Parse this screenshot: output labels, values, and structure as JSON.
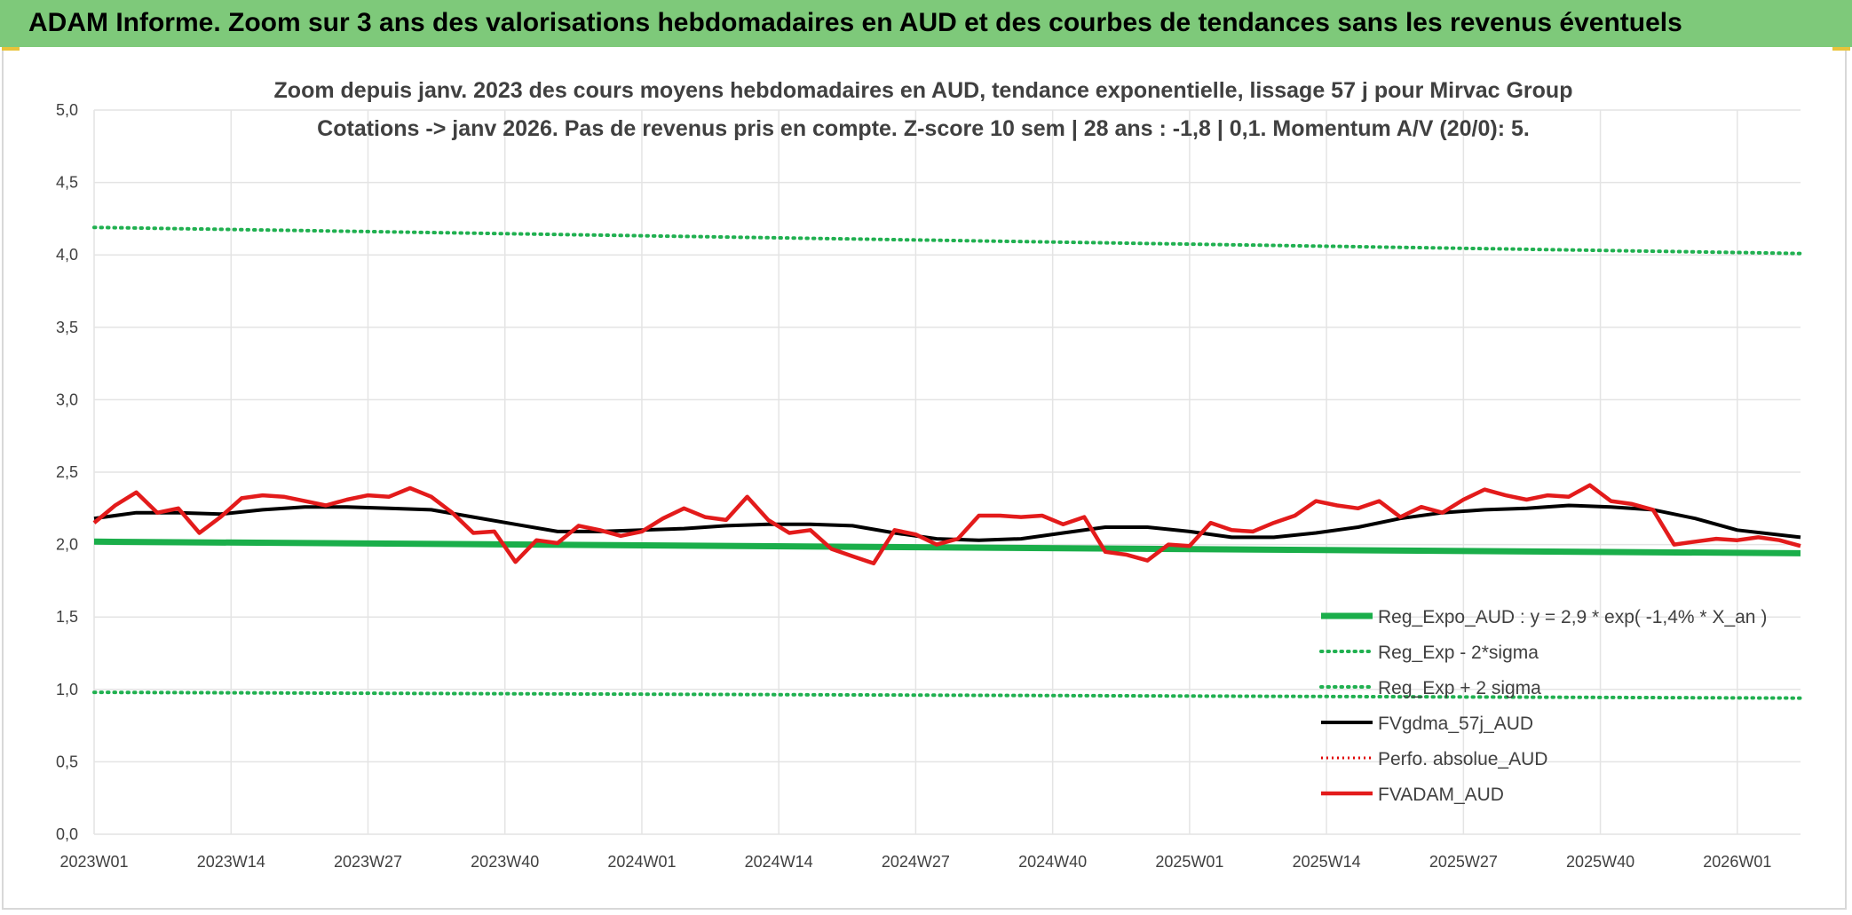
{
  "header": {
    "title": "ADAM Informe. Zoom sur 3 ans des valorisations hebdomadaires en AUD et des courbes de tendances sans les revenus éventuels"
  },
  "colors": {
    "banner": "#7ec97a",
    "reg_expo": "#1aae4a",
    "reg_band": "#20b050",
    "fvgdma": "#000000",
    "perfo": "#e00000",
    "fvadam": "#e31b1b",
    "grid": "#e4e4e4"
  },
  "chart_data": {
    "type": "line",
    "title": "Zoom depuis janv. 2023 des cours moyens hebdomadaires en AUD, tendance exponentielle, lissage 57 j pour Mirvac Group",
    "subtitle": "Cotations -> janv 2026. Pas de revenus pris en compte. Z-score 10 sem | 28 ans : -1,8 | 0,1. Momentum A/V (20/0): 5.",
    "xlabel": "",
    "ylabel": "",
    "ylim": [
      0,
      5
    ],
    "yticks": [
      "0,0",
      "0,5",
      "1,0",
      "1,5",
      "2,0",
      "2,5",
      "3,0",
      "3,5",
      "4,0",
      "4,5",
      "5,0"
    ],
    "xticks": [
      "2023W01",
      "2023W14",
      "2023W27",
      "2023W40",
      "2024W01",
      "2024W14",
      "2024W27",
      "2024W40",
      "2025W01",
      "2025W14",
      "2025W27",
      "2025W40",
      "2026W01"
    ],
    "x_range_weeks": [
      0,
      162
    ],
    "grid": true,
    "legend_position": "bottom-right",
    "series": [
      {
        "key": "reg_expo",
        "name": "Reg_Expo_AUD : y = 2,9 * exp( -1,4% *  X_an )",
        "style": "solid-thick",
        "x": [
          0,
          162
        ],
        "y": [
          2.02,
          1.94
        ]
      },
      {
        "key": "reg_minus",
        "name": "Reg_Exp - 2*sigma",
        "style": "dotted",
        "x": [
          0,
          162
        ],
        "y": [
          0.98,
          0.94
        ]
      },
      {
        "key": "reg_plus",
        "name": "Reg_Exp + 2 sigma",
        "style": "dotted",
        "x": [
          0,
          162
        ],
        "y": [
          4.19,
          4.01
        ]
      },
      {
        "key": "fvgdma",
        "name": "FVgdma_57j_AUD",
        "style": "solid",
        "x": [
          0,
          4,
          8,
          12,
          16,
          20,
          24,
          28,
          32,
          36,
          40,
          44,
          48,
          52,
          56,
          60,
          64,
          68,
          72,
          76,
          80,
          84,
          88,
          92,
          96,
          100,
          104,
          108,
          112,
          116,
          120,
          124,
          128,
          132,
          136,
          140,
          144,
          148,
          152,
          156,
          162
        ],
        "y": [
          2.18,
          2.22,
          2.22,
          2.21,
          2.24,
          2.26,
          2.26,
          2.25,
          2.24,
          2.19,
          2.14,
          2.09,
          2.09,
          2.1,
          2.11,
          2.13,
          2.14,
          2.14,
          2.13,
          2.08,
          2.04,
          2.03,
          2.04,
          2.08,
          2.12,
          2.12,
          2.09,
          2.05,
          2.05,
          2.08,
          2.12,
          2.18,
          2.22,
          2.24,
          2.25,
          2.27,
          2.26,
          2.24,
          2.18,
          2.1,
          2.05
        ]
      },
      {
        "key": "perfo",
        "name": "Perfo. absolue_AUD",
        "style": "dotted",
        "x": [],
        "y": []
      },
      {
        "key": "fvadam",
        "name": "FVADAM_AUD",
        "style": "solid-thick",
        "x": [
          0,
          2,
          4,
          6,
          8,
          10,
          12,
          14,
          16,
          18,
          20,
          22,
          24,
          26,
          28,
          30,
          32,
          34,
          36,
          38,
          40,
          42,
          44,
          46,
          48,
          50,
          52,
          54,
          56,
          58,
          60,
          62,
          64,
          66,
          68,
          70,
          72,
          74,
          76,
          78,
          80,
          82,
          84,
          86,
          88,
          90,
          92,
          94,
          96,
          98,
          100,
          102,
          104,
          106,
          108,
          110,
          112,
          114,
          116,
          118,
          120,
          122,
          124,
          126,
          128,
          130,
          132,
          134,
          136,
          138,
          140,
          142,
          144,
          146,
          148,
          150,
          152,
          154,
          156,
          158,
          160,
          162
        ],
        "y": [
          2.15,
          2.27,
          2.36,
          2.22,
          2.25,
          2.08,
          2.19,
          2.32,
          2.34,
          2.33,
          2.3,
          2.27,
          2.31,
          2.34,
          2.33,
          2.39,
          2.33,
          2.22,
          2.08,
          2.09,
          1.88,
          2.03,
          2.01,
          2.13,
          2.1,
          2.06,
          2.09,
          2.18,
          2.25,
          2.19,
          2.17,
          2.33,
          2.17,
          2.08,
          2.1,
          1.97,
          1.92,
          1.87,
          2.1,
          2.07,
          2.0,
          2.04,
          2.2,
          2.2,
          2.19,
          2.2,
          2.14,
          2.19,
          1.95,
          1.93,
          1.89,
          2.0,
          1.99,
          2.15,
          2.1,
          2.09,
          2.15,
          2.2,
          2.3,
          2.27,
          2.25,
          2.3,
          2.19,
          2.26,
          2.22,
          2.31,
          2.38,
          2.34,
          2.31,
          2.34,
          2.33,
          2.41,
          2.3,
          2.28,
          2.24,
          2.0,
          2.02,
          2.04,
          2.03,
          2.05,
          2.03,
          1.99
        ]
      }
    ]
  }
}
